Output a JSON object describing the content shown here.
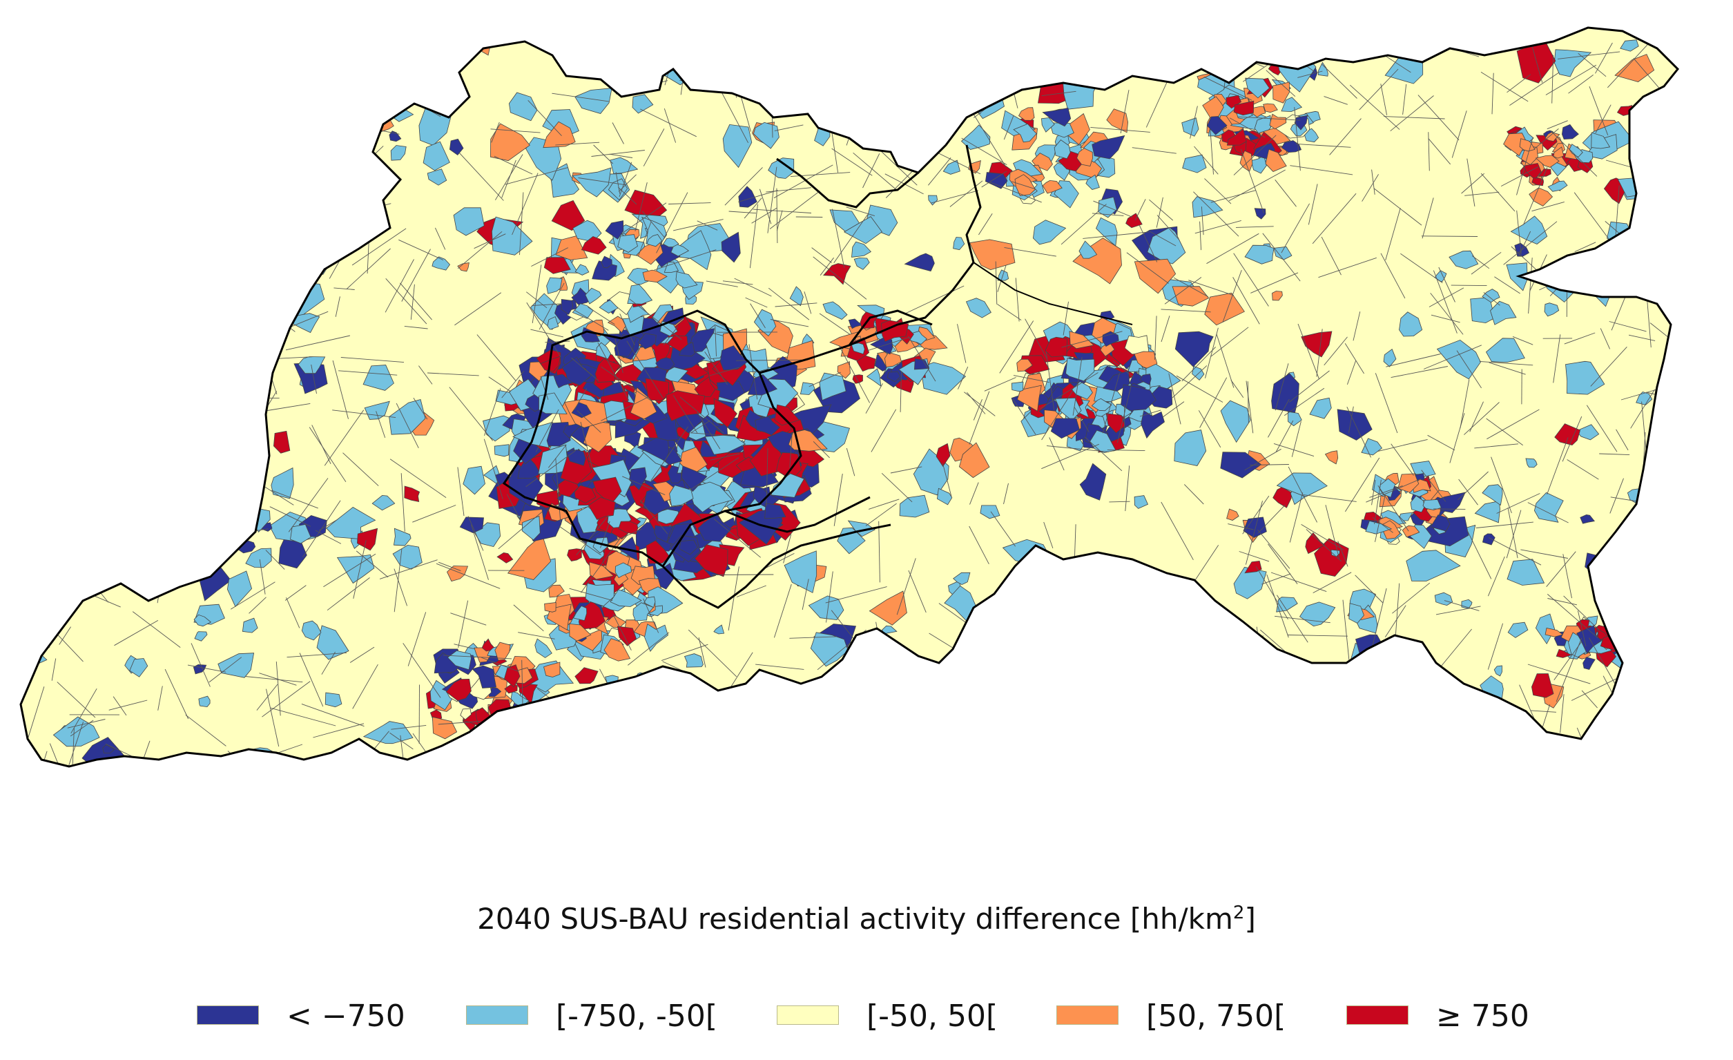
{
  "map": {
    "title_main": "2040 SUS-BAU residential activity difference [hh/km",
    "title_sup": "2",
    "title_end": "]"
  },
  "colors": {
    "very_negative": "#2c3494",
    "negative": "#74c2e0",
    "neutral": "#ffffbf",
    "positive": "#fd9250",
    "very_positive": "#c8061e",
    "outline": "#000000",
    "inner_border": "#555555"
  },
  "legend": {
    "items": [
      {
        "label": "< −750",
        "color": "#2c3494"
      },
      {
        "label": "[-750, -50[",
        "color": "#74c2e0"
      },
      {
        "label": "[-50, 50[",
        "color": "#ffffbf"
      },
      {
        "label": "[50, 750[",
        "color": "#fd9250"
      },
      {
        "label": "≥  750",
        "color": "#c8061e"
      }
    ]
  }
}
